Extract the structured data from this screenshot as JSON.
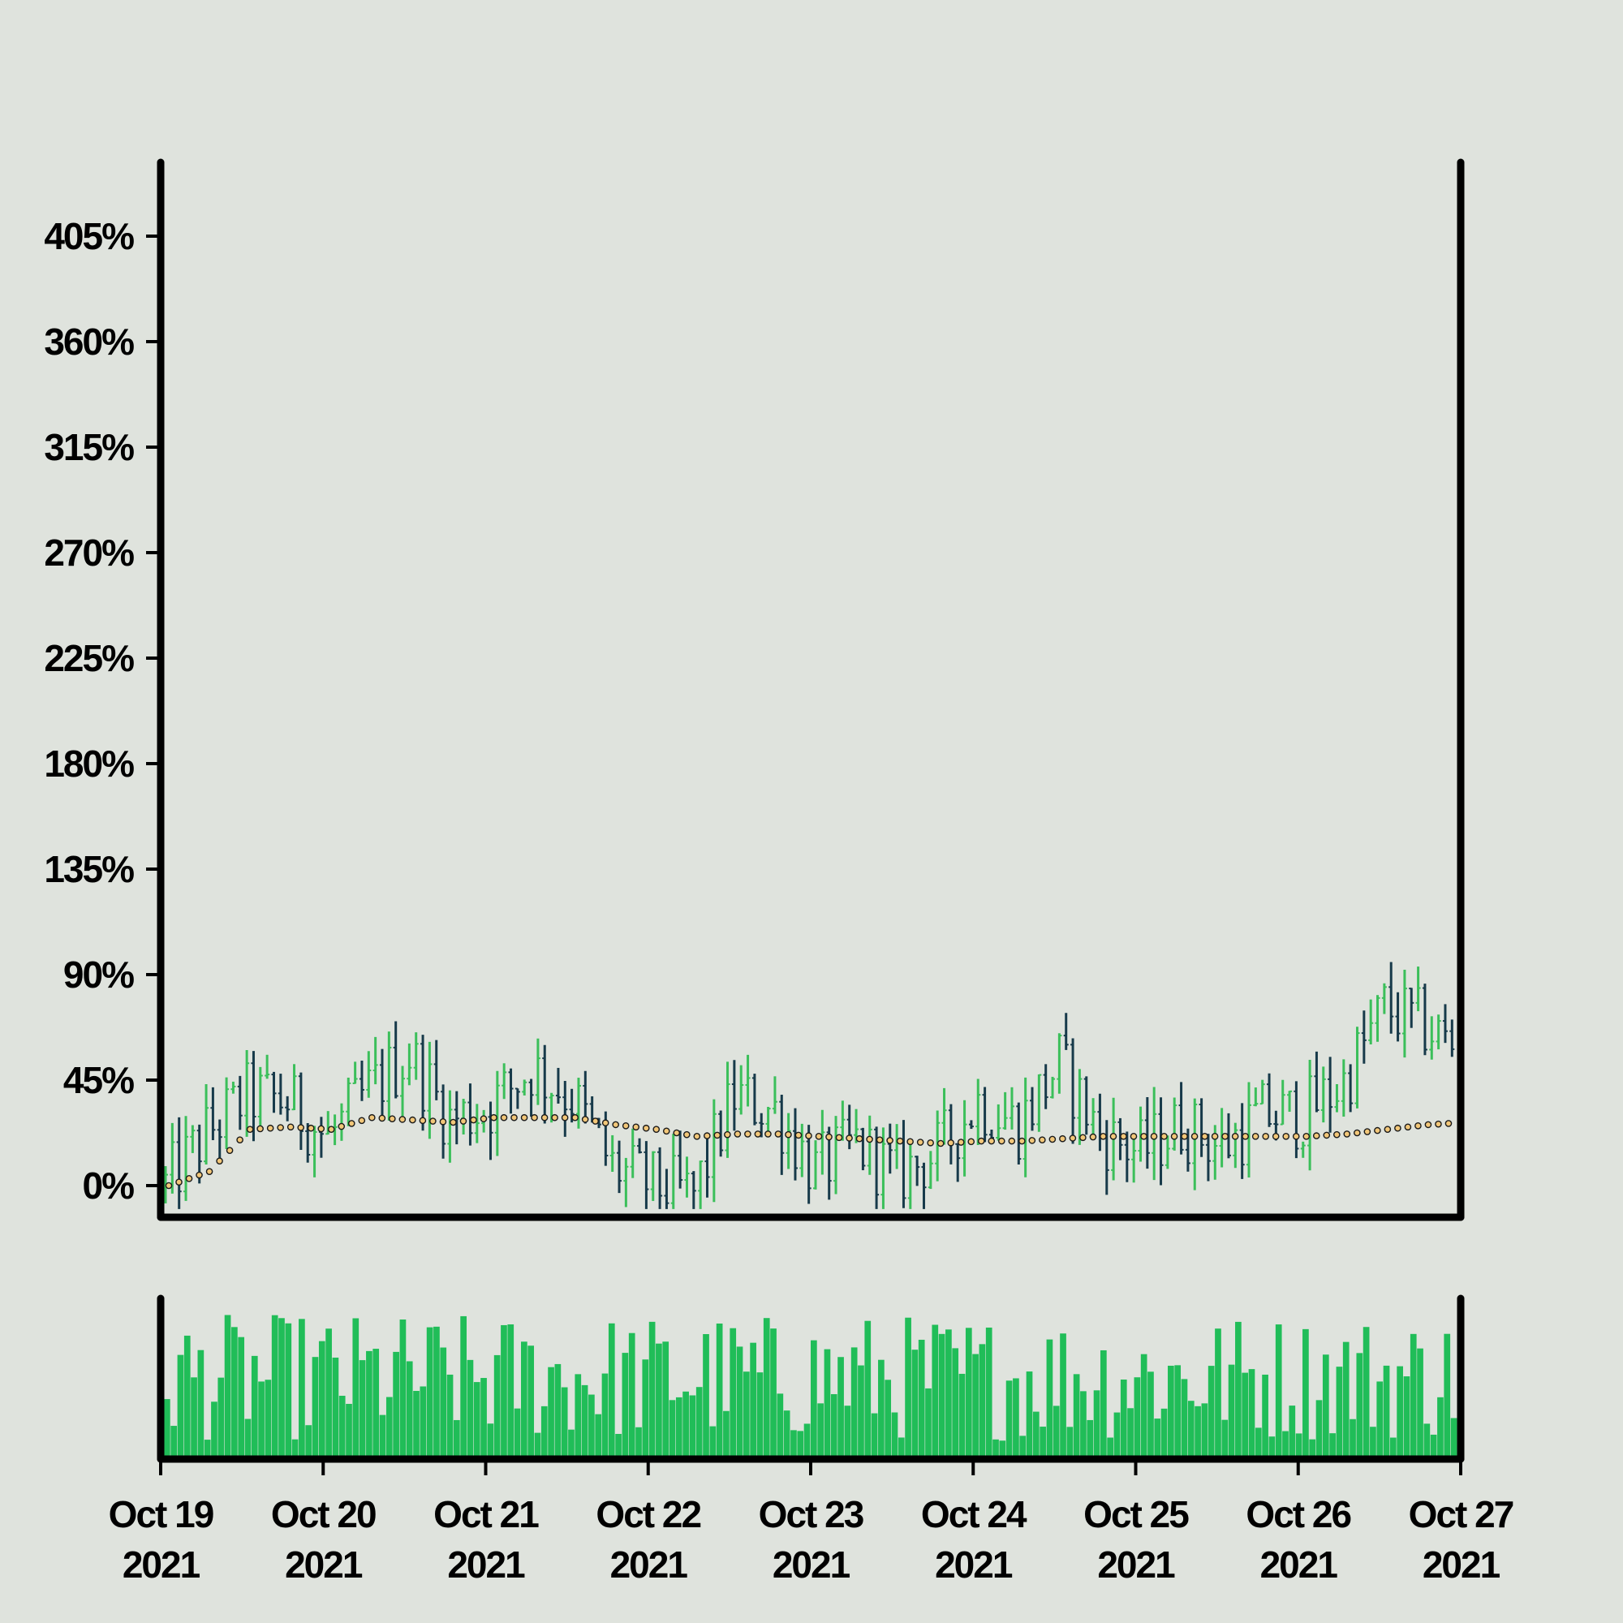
{
  "chart_data": {
    "type": "ohlc",
    "title": "",
    "xlabel": "",
    "ylabel": "",
    "ylim": [
      -10,
      460
    ],
    "y_ticks": [
      {
        "value": 0,
        "label": "0%"
      },
      {
        "value": 45,
        "label": "45%"
      },
      {
        "value": 90,
        "label": "90%"
      },
      {
        "value": 135,
        "label": "135%"
      },
      {
        "value": 180,
        "label": "180%"
      },
      {
        "value": 225,
        "label": "225%"
      },
      {
        "value": 270,
        "label": "270%"
      },
      {
        "value": 315,
        "label": "315%"
      },
      {
        "value": 360,
        "label": "360%"
      },
      {
        "value": 405,
        "label": "405%"
      }
    ],
    "x_range": [
      "2021-10-19",
      "2021-10-27"
    ],
    "x_ticks": [
      {
        "date": "2021-10-19",
        "line1": "Oct 19",
        "line2": "2021"
      },
      {
        "date": "2021-10-20",
        "line1": "Oct 20",
        "line2": "2021"
      },
      {
        "date": "2021-10-21",
        "line1": "Oct 21",
        "line2": "2021"
      },
      {
        "date": "2021-10-22",
        "line1": "Oct 22",
        "line2": "2021"
      },
      {
        "date": "2021-10-23",
        "line1": "Oct 23",
        "line2": "2021"
      },
      {
        "date": "2021-10-24",
        "line1": "Oct 24",
        "line2": "2021"
      },
      {
        "date": "2021-10-25",
        "line1": "Oct 25",
        "line2": "2021"
      },
      {
        "date": "2021-10-26",
        "line1": "Oct 26",
        "line2": "2021"
      },
      {
        "date": "2021-10-27",
        "line1": "Oct 27",
        "line2": "2021"
      }
    ],
    "bar_interval_hours": 1,
    "close_path": [
      [
        "2021-10-19T00:00",
        0
      ],
      [
        "2021-10-19T06:00",
        22
      ],
      [
        "2021-10-19T12:00",
        38
      ],
      [
        "2021-10-19T18:00",
        36
      ],
      [
        "2021-10-20T00:00",
        20
      ],
      [
        "2021-10-20T06:00",
        40
      ],
      [
        "2021-10-20T12:00",
        56
      ],
      [
        "2021-10-20T18:00",
        28
      ],
      [
        "2021-10-21T00:00",
        34
      ],
      [
        "2021-10-21T06:00",
        50
      ],
      [
        "2021-10-21T12:00",
        38
      ],
      [
        "2021-10-21T18:00",
        8
      ],
      [
        "2021-10-22T00:00",
        0
      ],
      [
        "2021-10-22T06:00",
        -4
      ],
      [
        "2021-10-22T12:00",
        38
      ],
      [
        "2021-10-22T18:00",
        32
      ],
      [
        "2021-10-23T00:00",
        6
      ],
      [
        "2021-10-23T06:00",
        18
      ],
      [
        "2021-10-23T12:00",
        4
      ],
      [
        "2021-10-23T18:00",
        14
      ],
      [
        "2021-10-24T00:00",
        36
      ],
      [
        "2021-10-24T06:00",
        26
      ],
      [
        "2021-10-24T12:00",
        52
      ],
      [
        "2021-10-24T18:00",
        22
      ],
      [
        "2021-10-25T00:00",
        14
      ],
      [
        "2021-10-25T06:00",
        26
      ],
      [
        "2021-10-25T12:00",
        16
      ],
      [
        "2021-10-25T18:00",
        30
      ],
      [
        "2021-10-26T00:00",
        30
      ],
      [
        "2021-10-26T06:00",
        44
      ],
      [
        "2021-10-26T12:00",
        76
      ],
      [
        "2021-10-26T18:00",
        68
      ],
      [
        "2021-10-27T00:00",
        56
      ]
    ],
    "moving_average": [
      [
        "2021-10-19T00:00",
        0
      ],
      [
        "2021-10-19T06:00",
        6
      ],
      [
        "2021-10-19T12:00",
        24
      ],
      [
        "2021-10-19T18:00",
        25
      ],
      [
        "2021-10-20T00:00",
        24
      ],
      [
        "2021-10-20T06:00",
        29
      ],
      [
        "2021-10-20T12:00",
        28
      ],
      [
        "2021-10-20T18:00",
        27
      ],
      [
        "2021-10-21T00:00",
        29
      ],
      [
        "2021-10-21T06:00",
        29
      ],
      [
        "2021-10-21T12:00",
        29
      ],
      [
        "2021-10-21T18:00",
        26
      ],
      [
        "2021-10-22T00:00",
        24
      ],
      [
        "2021-10-22T06:00",
        21
      ],
      [
        "2021-10-22T12:00",
        22
      ],
      [
        "2021-10-22T18:00",
        22
      ],
      [
        "2021-10-23T00:00",
        21
      ],
      [
        "2021-10-23T06:00",
        20
      ],
      [
        "2021-10-23T12:00",
        19
      ],
      [
        "2021-10-23T18:00",
        18
      ],
      [
        "2021-10-24T00:00",
        19
      ],
      [
        "2021-10-24T06:00",
        19
      ],
      [
        "2021-10-24T12:00",
        20
      ],
      [
        "2021-10-24T18:00",
        21
      ],
      [
        "2021-10-25T00:00",
        21
      ],
      [
        "2021-10-25T06:00",
        21
      ],
      [
        "2021-10-25T12:00",
        21
      ],
      [
        "2021-10-25T18:00",
        21
      ],
      [
        "2021-10-26T00:00",
        21
      ],
      [
        "2021-10-26T06:00",
        22
      ],
      [
        "2021-10-26T12:00",
        24
      ],
      [
        "2021-10-26T18:00",
        26
      ],
      [
        "2021-10-27T00:00",
        27
      ]
    ],
    "volume_relative_range": [
      0.1,
      0.95
    ],
    "colors": {
      "background": "#dfe3dd",
      "up": "#3bbf5a",
      "down": "#173a4a",
      "volume": "#20bd58",
      "ma_fill": "#f2c779",
      "ma_stroke": "#1a1a1a",
      "axis": "#000000"
    },
    "grid": false,
    "legend": "none"
  }
}
